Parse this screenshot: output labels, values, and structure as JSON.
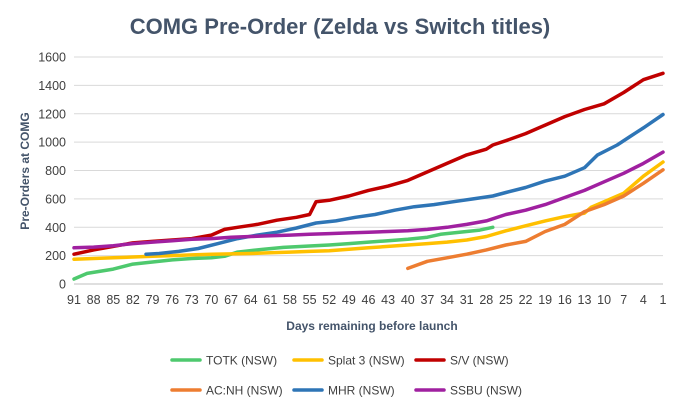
{
  "chart_data": {
    "type": "line",
    "title": "COMG Pre-Order (Zelda vs Switch titles)",
    "xlabel": "Days remaining before launch",
    "ylabel": "Pre-Orders at COMG",
    "ylim": [
      0,
      1600
    ],
    "yticks": [
      0,
      200,
      400,
      600,
      800,
      1000,
      1200,
      1400,
      1600
    ],
    "xlim": [
      91,
      1
    ],
    "xticks": [
      91,
      88,
      85,
      82,
      79,
      76,
      73,
      70,
      67,
      64,
      61,
      58,
      55,
      52,
      49,
      46,
      43,
      40,
      37,
      34,
      31,
      28,
      25,
      22,
      19,
      16,
      13,
      10,
      7,
      4,
      1
    ],
    "grid": "horizontal",
    "legend_position": "bottom",
    "series": [
      {
        "name": "TOTK (NSW)",
        "color": "#4ec96e",
        "x": [
          91,
          89,
          85,
          82,
          79,
          76,
          73,
          70,
          68,
          66,
          62,
          59,
          55,
          52,
          49,
          46,
          43,
          40,
          37,
          35,
          33,
          31,
          29,
          27
        ],
        "y": [
          35,
          75,
          105,
          140,
          155,
          170,
          180,
          185,
          195,
          225,
          245,
          258,
          268,
          275,
          285,
          295,
          305,
          315,
          330,
          350,
          360,
          370,
          380,
          400
        ]
      },
      {
        "name": "Splat 3 (NSW)",
        "color": "#ffc000",
        "x": [
          91,
          88,
          85,
          82,
          79,
          76,
          73,
          70,
          67,
          64,
          61,
          58,
          55,
          52,
          49,
          46,
          43,
          40,
          37,
          34,
          31,
          28,
          25,
          22,
          19,
          16,
          13,
          12,
          10,
          7,
          4,
          1
        ],
        "y": [
          175,
          180,
          185,
          190,
          195,
          200,
          205,
          210,
          212,
          215,
          220,
          225,
          230,
          235,
          245,
          255,
          265,
          275,
          285,
          295,
          310,
          335,
          375,
          410,
          445,
          475,
          500,
          540,
          580,
          640,
          760,
          860
        ]
      },
      {
        "name": "S/V (NSW)",
        "color": "#c00000",
        "x": [
          91,
          88,
          85,
          82,
          79,
          76,
          73,
          70,
          68,
          66,
          63,
          60,
          57,
          55,
          54,
          52,
          49,
          46,
          43,
          40,
          37,
          34,
          31,
          28,
          27,
          25,
          22,
          19,
          16,
          13,
          10,
          7,
          4,
          1
        ],
        "y": [
          210,
          240,
          265,
          290,
          300,
          310,
          320,
          345,
          385,
          400,
          420,
          450,
          470,
          490,
          580,
          590,
          620,
          660,
          690,
          730,
          790,
          850,
          910,
          950,
          980,
          1010,
          1060,
          1120,
          1180,
          1230,
          1270,
          1350,
          1440,
          1485
        ]
      },
      {
        "name": "AC:NH (NSW)",
        "color": "#ed7d31",
        "x": [
          40,
          37,
          34,
          31,
          28,
          25,
          22,
          19,
          16,
          13,
          10,
          7,
          4,
          1
        ],
        "y": [
          110,
          160,
          185,
          210,
          240,
          275,
          300,
          370,
          420,
          510,
          560,
          620,
          710,
          805
        ]
      },
      {
        "name": "MHR (NSW)",
        "color": "#2e75b6",
        "x": [
          80,
          78,
          75,
          72,
          69,
          66,
          63,
          60,
          57,
          54,
          51,
          48,
          45,
          42,
          39,
          36,
          33,
          30,
          27,
          25,
          22,
          19,
          16,
          13,
          11,
          8,
          6,
          4,
          1
        ],
        "y": [
          210,
          215,
          230,
          250,
          285,
          320,
          345,
          365,
          395,
          430,
          445,
          470,
          490,
          520,
          545,
          560,
          580,
          600,
          620,
          645,
          680,
          725,
          760,
          820,
          910,
          980,
          1040,
          1100,
          1195
        ]
      },
      {
        "name": "SSBU (NSW)",
        "color": "#a020a0",
        "x": [
          91,
          88,
          85,
          82,
          79,
          76,
          73,
          70,
          67,
          64,
          61,
          58,
          55,
          52,
          49,
          46,
          43,
          40,
          37,
          34,
          31,
          28,
          25,
          22,
          19,
          16,
          13,
          10,
          7,
          4,
          1
        ],
        "y": [
          255,
          260,
          270,
          285,
          295,
          305,
          315,
          320,
          330,
          335,
          340,
          345,
          350,
          355,
          360,
          365,
          370,
          375,
          385,
          400,
          420,
          445,
          490,
          520,
          560,
          610,
          660,
          720,
          780,
          850,
          930
        ]
      }
    ]
  }
}
